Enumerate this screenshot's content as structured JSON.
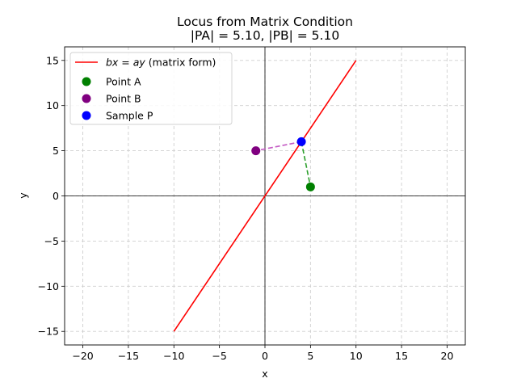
{
  "chart_data": {
    "type": "scatter",
    "title": [
      "Locus from Matrix Condition",
      "|PA| = 5.10, |PB| = 5.10"
    ],
    "xlabel": "x",
    "ylabel": "y",
    "xlim": [
      -22,
      22
    ],
    "ylim": [
      -16.5,
      16.5
    ],
    "xticks": [
      -20,
      -15,
      -10,
      -5,
      0,
      5,
      10,
      15,
      20
    ],
    "yticks": [
      -15,
      -10,
      -5,
      0,
      5,
      10,
      15
    ],
    "grid": true,
    "legend_position": "upper-left",
    "line": {
      "name_math": "bx = ay",
      "name_suffix": " (matrix form)",
      "color": "#ff0000",
      "x": [
        -10,
        10
      ],
      "y": [
        -15,
        15
      ]
    },
    "points": [
      {
        "name": "Point A",
        "x": 5,
        "y": 1,
        "color": "#008000"
      },
      {
        "name": "Point B",
        "x": -1,
        "y": 5,
        "color": "#800080"
      },
      {
        "name": "Sample P",
        "x": 4,
        "y": 6,
        "color": "#0000ff"
      }
    ],
    "segments": [
      {
        "from": "Sample P",
        "to": "Point A",
        "color": "#2ca02c"
      },
      {
        "from": "Sample P",
        "to": "Point B",
        "color": "#c45bc4"
      }
    ]
  }
}
